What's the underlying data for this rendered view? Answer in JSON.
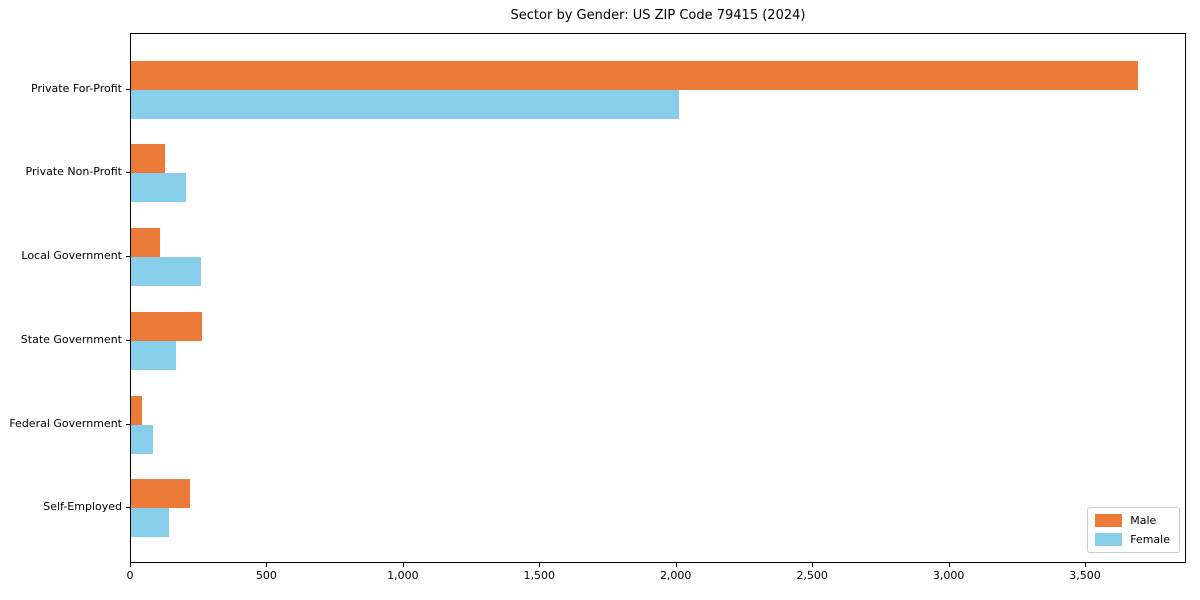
{
  "title": "Sector by Gender: US ZIP Code 79415 (2024)",
  "chart_data": {
    "type": "bar",
    "orientation": "horizontal",
    "title": "Sector by Gender: US ZIP Code 79415 (2024)",
    "xlabel": "",
    "ylabel": "",
    "categories": [
      "Private For-Profit",
      "Private Non-Profit",
      "Local Government",
      "State Government",
      "Federal Government",
      "Self-Employed"
    ],
    "series": [
      {
        "name": "Male",
        "color": "#ec7a38",
        "values": [
          3690,
          125,
          105,
          260,
          40,
          215
        ]
      },
      {
        "name": "Female",
        "color": "#87ceeb",
        "values": [
          2010,
          200,
          255,
          165,
          80,
          140
        ]
      }
    ],
    "xlim": [
      0,
      3870
    ],
    "x_ticks": [
      0,
      500,
      1000,
      1500,
      2000,
      2500,
      3000,
      3500
    ],
    "x_tick_labels": [
      "0",
      "500",
      "1,000",
      "1,500",
      "2,000",
      "2,500",
      "3,000",
      "3,500"
    ],
    "grid": false,
    "legend_position": "lower right",
    "axis_color": "#000000",
    "background_color": "#ffffff"
  }
}
